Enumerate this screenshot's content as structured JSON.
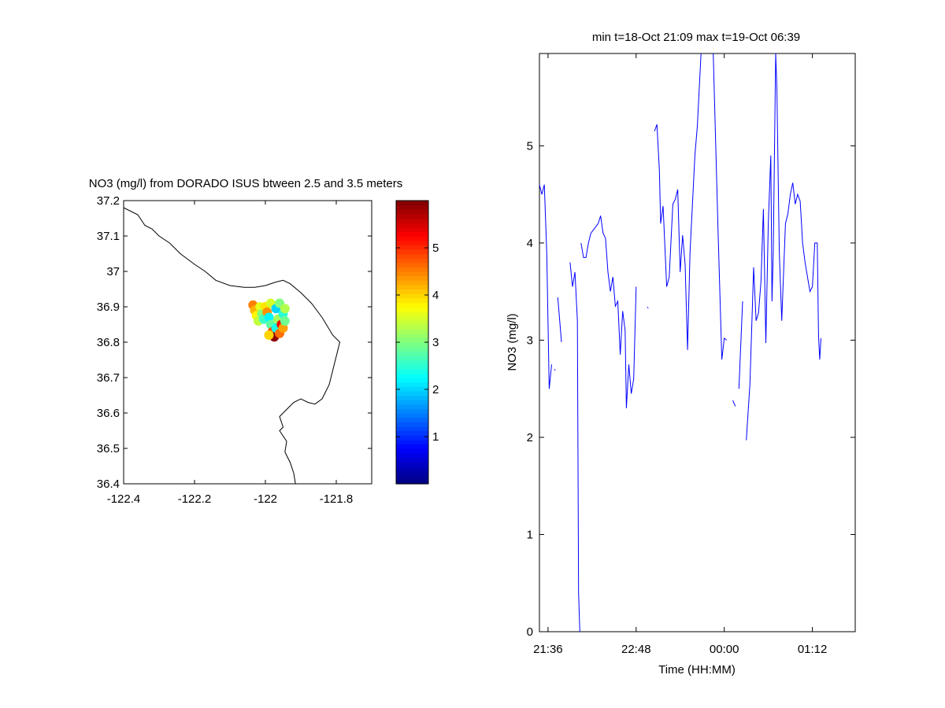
{
  "chart_data": [
    {
      "type": "scatter",
      "title": "NO3 (mg/l) from DORADO ISUS btween 2.5 and 3.5 meters",
      "xlim": [
        -122.4,
        -121.7
      ],
      "ylim": [
        36.4,
        37.2
      ],
      "xticks": [
        -122.4,
        -122.2,
        -122.0,
        -121.8
      ],
      "xtick_labels": [
        "-122.4",
        "-122.2",
        "-122",
        "-121.8"
      ],
      "yticks": [
        36.4,
        36.5,
        36.6,
        36.7,
        36.8,
        36.9,
        37.0,
        37.1,
        37.2
      ],
      "ytick_labels": [
        "36.4",
        "36.5",
        "36.6",
        "36.7",
        "36.8",
        "36.9",
        "37",
        "37.1",
        "37.2"
      ],
      "grid": false,
      "colorbar": {
        "range": [
          0,
          6
        ],
        "ticks": [
          1,
          2,
          3,
          4,
          5
        ],
        "tick_labels": [
          "1",
          "2",
          "3",
          "4",
          "5"
        ],
        "colormap": "jet"
      },
      "coastline": [
        [
          -122.4,
          37.18
        ],
        [
          -122.36,
          37.16
        ],
        [
          -122.34,
          37.13
        ],
        [
          -122.32,
          37.12
        ],
        [
          -122.3,
          37.1
        ],
        [
          -122.27,
          37.08
        ],
        [
          -122.24,
          37.05
        ],
        [
          -122.2,
          37.02
        ],
        [
          -122.17,
          37.0
        ],
        [
          -122.14,
          36.975
        ],
        [
          -122.1,
          36.96
        ],
        [
          -122.06,
          36.955
        ],
        [
          -122.03,
          36.955
        ],
        [
          -122.0,
          36.96
        ],
        [
          -121.97,
          36.97
        ],
        [
          -121.95,
          36.975
        ],
        [
          -121.93,
          36.965
        ],
        [
          -121.9,
          36.94
        ],
        [
          -121.87,
          36.91
        ],
        [
          -121.84,
          36.87
        ],
        [
          -121.81,
          36.82
        ],
        [
          -121.79,
          36.8
        ],
        [
          -121.8,
          36.76
        ],
        [
          -121.81,
          36.72
        ],
        [
          -121.82,
          36.68
        ],
        [
          -121.84,
          36.64
        ],
        [
          -121.86,
          36.625
        ],
        [
          -121.88,
          36.63
        ],
        [
          -121.9,
          36.64
        ],
        [
          -121.92,
          36.63
        ],
        [
          -121.94,
          36.61
        ],
        [
          -121.96,
          36.59
        ],
        [
          -121.95,
          36.56
        ],
        [
          -121.96,
          36.55
        ],
        [
          -121.94,
          36.52
        ],
        [
          -121.945,
          36.49
        ],
        [
          -121.93,
          36.46
        ],
        [
          -121.92,
          36.43
        ],
        [
          -121.915,
          36.4
        ]
      ],
      "points": [
        {
          "lon": -122.035,
          "lat": 36.905,
          "v": 4.5
        },
        {
          "lon": -122.03,
          "lat": 36.89,
          "v": 4.2
        },
        {
          "lon": -122.025,
          "lat": 36.875,
          "v": 3.8
        },
        {
          "lon": -122.02,
          "lat": 36.86,
          "v": 3.4
        },
        {
          "lon": -122.015,
          "lat": 36.9,
          "v": 3.6
        },
        {
          "lon": -122.01,
          "lat": 36.88,
          "v": 3.0
        },
        {
          "lon": -122.005,
          "lat": 36.865,
          "v": 2.6
        },
        {
          "lon": -122.0,
          "lat": 36.9,
          "v": 3.9
        },
        {
          "lon": -121.995,
          "lat": 36.885,
          "v": 4.4
        },
        {
          "lon": -121.99,
          "lat": 36.87,
          "v": 2.2
        },
        {
          "lon": -121.985,
          "lat": 36.85,
          "v": 2.8
        },
        {
          "lon": -121.985,
          "lat": 36.91,
          "v": 3.5
        },
        {
          "lon": -121.98,
          "lat": 36.83,
          "v": 4.8
        },
        {
          "lon": -121.975,
          "lat": 36.815,
          "v": 5.9
        },
        {
          "lon": -121.97,
          "lat": 36.84,
          "v": 2.4
        },
        {
          "lon": -121.97,
          "lat": 36.895,
          "v": 2.0
        },
        {
          "lon": -121.965,
          "lat": 36.865,
          "v": 3.2
        },
        {
          "lon": -121.96,
          "lat": 36.91,
          "v": 3.0
        },
        {
          "lon": -121.96,
          "lat": 36.825,
          "v": 4.6
        },
        {
          "lon": -121.955,
          "lat": 36.85,
          "v": 5.3
        },
        {
          "lon": -121.95,
          "lat": 36.88,
          "v": 2.5
        },
        {
          "lon": -121.95,
          "lat": 36.84,
          "v": 4.3
        },
        {
          "lon": -121.945,
          "lat": 36.86,
          "v": 2.9
        },
        {
          "lon": -121.945,
          "lat": 36.895,
          "v": 3.3
        },
        {
          "lon": -121.99,
          "lat": 36.82,
          "v": 4.0
        }
      ]
    },
    {
      "type": "line",
      "title": "min t=18-Oct 21:09 max t=19-Oct 06:39",
      "xlabel": "Time (HH:MM)",
      "ylabel": "NO3 (mg/l)",
      "xlim_minutes": [
        1289,
        1547
      ],
      "ylim": [
        0,
        5.95
      ],
      "xticks_minutes": [
        1296,
        1368,
        1440,
        1512
      ],
      "xtick_labels": [
        "21:36",
        "22:48",
        "00:00",
        "01:12"
      ],
      "yticks": [
        0,
        1,
        2,
        3,
        4,
        5
      ],
      "ytick_labels": [
        "0",
        "1",
        "2",
        "3",
        "4",
        "5"
      ],
      "grid": false,
      "line_color": "#0000ff",
      "segments": [
        [
          [
            1289,
            4.6
          ],
          [
            1291,
            4.5
          ],
          [
            1293,
            4.6
          ],
          [
            1295,
            3.9
          ],
          [
            1297,
            2.5
          ],
          [
            1299,
            2.75
          ]
        ],
        [
          [
            1301,
            2.7
          ],
          [
            1302,
            2.69
          ]
        ],
        [
          [
            1304,
            3.44
          ],
          [
            1307,
            2.98
          ]
        ],
        [
          [
            1314,
            3.8
          ],
          [
            1316,
            3.55
          ],
          [
            1318,
            3.7
          ],
          [
            1320,
            3.2
          ],
          [
            1321,
            0.4
          ],
          [
            1322,
            0.0
          ]
        ],
        [
          [
            1323,
            4.0
          ],
          [
            1325,
            3.85
          ],
          [
            1327,
            3.85
          ],
          [
            1329,
            4.0
          ],
          [
            1331,
            4.1
          ],
          [
            1334,
            4.15
          ],
          [
            1337,
            4.2
          ],
          [
            1339,
            4.28
          ],
          [
            1341,
            4.1
          ],
          [
            1343,
            4.05
          ],
          [
            1345,
            3.7
          ],
          [
            1347,
            3.5
          ],
          [
            1349,
            3.65
          ],
          [
            1351,
            3.35
          ],
          [
            1353,
            3.4
          ],
          [
            1355,
            2.85
          ],
          [
            1357,
            3.3
          ],
          [
            1359,
            3.1
          ],
          [
            1360,
            2.3
          ],
          [
            1362,
            2.75
          ],
          [
            1364,
            2.45
          ],
          [
            1366,
            2.6
          ],
          [
            1368,
            3.55
          ]
        ],
        [
          [
            1377,
            3.34
          ],
          [
            1378,
            3.33
          ]
        ],
        [
          [
            1383,
            5.15
          ],
          [
            1385,
            5.22
          ],
          [
            1387,
            4.75
          ],
          [
            1388,
            4.2
          ],
          [
            1390,
            4.38
          ],
          [
            1393,
            3.55
          ],
          [
            1395,
            3.65
          ],
          [
            1398,
            4.4
          ],
          [
            1400,
            4.45
          ],
          [
            1402,
            4.55
          ],
          [
            1404,
            3.7
          ],
          [
            1406,
            4.08
          ],
          [
            1408,
            3.78
          ],
          [
            1410,
            2.9
          ],
          [
            1412,
            3.9
          ],
          [
            1416,
            4.9
          ],
          [
            1418,
            5.2
          ],
          [
            1421,
            5.95
          ]
        ],
        [
          [
            1431,
            5.95
          ],
          [
            1435,
            4.1
          ],
          [
            1438,
            2.8
          ],
          [
            1440,
            3.02
          ],
          [
            1442,
            3.0
          ]
        ],
        [
          [
            1447,
            2.38
          ],
          [
            1449,
            2.32
          ]
        ],
        [
          [
            1452,
            2.5
          ],
          [
            1455,
            3.4
          ]
        ],
        [
          [
            1458,
            1.97
          ],
          [
            1461,
            2.55
          ],
          [
            1464,
            3.75
          ],
          [
            1466,
            3.2
          ],
          [
            1468,
            3.28
          ],
          [
            1470,
            3.6
          ],
          [
            1472,
            4.35
          ],
          [
            1474,
            2.97
          ],
          [
            1476,
            4.2
          ],
          [
            1478,
            4.9
          ],
          [
            1479,
            3.4
          ],
          [
            1480,
            3.9
          ],
          [
            1482,
            5.95
          ],
          [
            1483,
            5.6
          ],
          [
            1485,
            3.9
          ],
          [
            1487,
            3.2
          ],
          [
            1490,
            4.2
          ],
          [
            1492,
            4.3
          ],
          [
            1494,
            4.5
          ],
          [
            1496,
            4.62
          ],
          [
            1498,
            4.4
          ],
          [
            1500,
            4.5
          ],
          [
            1502,
            4.43
          ],
          [
            1504,
            4.0
          ],
          [
            1506,
            3.8
          ],
          [
            1508,
            3.65
          ],
          [
            1510,
            3.5
          ],
          [
            1512,
            3.55
          ],
          [
            1514,
            4.0
          ],
          [
            1516,
            4.0
          ],
          [
            1517,
            3.05
          ],
          [
            1518,
            2.8
          ],
          [
            1519,
            3.02
          ]
        ]
      ]
    }
  ]
}
